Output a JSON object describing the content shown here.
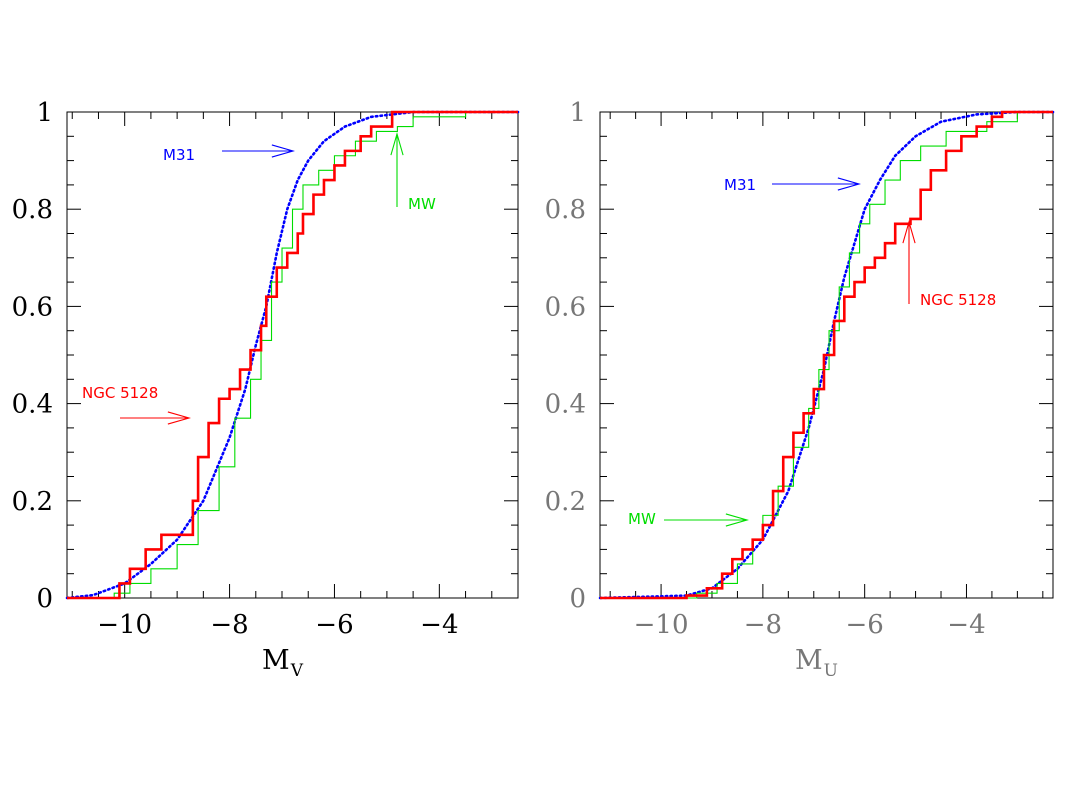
{
  "chart_data": [
    {
      "type": "line",
      "panel": "left",
      "xlabel": "M",
      "xlabel_sub": "V",
      "ylabel": "",
      "xlim": [
        -11.1,
        -2.5
      ],
      "ylim": [
        0,
        1
      ],
      "x_ticks": [
        -10,
        -8,
        -6,
        -4
      ],
      "x_tick_labels": [
        "−10",
        "−8",
        "−6",
        "−4"
      ],
      "y_ticks": [
        0,
        0.2,
        0.4,
        0.6,
        0.8,
        1
      ],
      "y_tick_labels": [
        "0",
        "0.2",
        "0.4",
        "0.6",
        "0.8",
        "1"
      ],
      "grid": false,
      "colors": {
        "NGC 5128": "#ff0000",
        "M31": "#0000ff",
        "MW": "#00dd00"
      },
      "series": [
        {
          "name": "M31",
          "style": "dotted",
          "points": [
            [
              -11.1,
              0.0
            ],
            [
              -10.6,
              0.006
            ],
            [
              -10.0,
              0.03
            ],
            [
              -9.5,
              0.07
            ],
            [
              -9.0,
              0.12
            ],
            [
              -8.5,
              0.2
            ],
            [
              -8.0,
              0.33
            ],
            [
              -7.7,
              0.43
            ],
            [
              -7.5,
              0.52
            ],
            [
              -7.3,
              0.6
            ],
            [
              -7.1,
              0.71
            ],
            [
              -6.9,
              0.8
            ],
            [
              -6.7,
              0.86
            ],
            [
              -6.5,
              0.9
            ],
            [
              -6.2,
              0.94
            ],
            [
              -5.8,
              0.97
            ],
            [
              -5.3,
              0.99
            ],
            [
              -4.5,
              1.0
            ],
            [
              -2.5,
              1.0
            ]
          ]
        },
        {
          "name": "MW",
          "style": "step",
          "points": [
            [
              -11.1,
              0.0
            ],
            [
              -10.2,
              0.01
            ],
            [
              -9.9,
              0.03
            ],
            [
              -9.5,
              0.06
            ],
            [
              -9.0,
              0.11
            ],
            [
              -8.6,
              0.18
            ],
            [
              -8.2,
              0.27
            ],
            [
              -7.9,
              0.37
            ],
            [
              -7.6,
              0.45
            ],
            [
              -7.4,
              0.53
            ],
            [
              -7.2,
              0.65
            ],
            [
              -7.0,
              0.72
            ],
            [
              -6.8,
              0.8
            ],
            [
              -6.6,
              0.85
            ],
            [
              -6.3,
              0.88
            ],
            [
              -6.0,
              0.91
            ],
            [
              -5.6,
              0.94
            ],
            [
              -5.2,
              0.96
            ],
            [
              -4.8,
              0.97
            ],
            [
              -4.5,
              0.99
            ],
            [
              -3.5,
              1.0
            ],
            [
              -2.5,
              1.0
            ]
          ]
        },
        {
          "name": "NGC 5128",
          "style": "step",
          "points": [
            [
              -11.1,
              0.0
            ],
            [
              -10.1,
              0.03
            ],
            [
              -9.9,
              0.06
            ],
            [
              -9.6,
              0.1
            ],
            [
              -9.3,
              0.13
            ],
            [
              -8.9,
              0.13
            ],
            [
              -8.7,
              0.2
            ],
            [
              -8.6,
              0.29
            ],
            [
              -8.4,
              0.36
            ],
            [
              -8.2,
              0.41
            ],
            [
              -8.0,
              0.43
            ],
            [
              -7.8,
              0.47
            ],
            [
              -7.6,
              0.51
            ],
            [
              -7.4,
              0.56
            ],
            [
              -7.3,
              0.62
            ],
            [
              -7.1,
              0.68
            ],
            [
              -6.9,
              0.71
            ],
            [
              -6.7,
              0.75
            ],
            [
              -6.6,
              0.79
            ],
            [
              -6.4,
              0.83
            ],
            [
              -6.2,
              0.86
            ],
            [
              -6.0,
              0.89
            ],
            [
              -5.8,
              0.92
            ],
            [
              -5.5,
              0.95
            ],
            [
              -5.3,
              0.97
            ],
            [
              -5.0,
              0.97
            ],
            [
              -4.9,
              1.0
            ],
            [
              -2.5,
              1.0
            ]
          ]
        }
      ],
      "annotations": [
        {
          "text": "M31",
          "color": "#0000ff"
        },
        {
          "text": "MW",
          "color": "#00dd00"
        },
        {
          "text": "NGC 5128",
          "color": "#ff0000"
        }
      ]
    },
    {
      "type": "line",
      "panel": "right",
      "xlabel": "M",
      "xlabel_sub": "U",
      "ylabel": "",
      "xlim": [
        -11.2,
        -2.3
      ],
      "ylim": [
        0,
        1
      ],
      "x_ticks": [
        -10,
        -8,
        -6,
        -4
      ],
      "x_tick_labels": [
        "−10",
        "−8",
        "−6",
        "−4"
      ],
      "y_ticks": [
        0,
        0.2,
        0.4,
        0.6,
        0.8,
        1
      ],
      "y_tick_labels": [
        "0",
        "0.2",
        "0.4",
        "0.6",
        "0.8",
        "1"
      ],
      "grid": false,
      "colors": {
        "NGC 5128": "#ff0000",
        "M31": "#0000ff",
        "MW": "#00dd00"
      },
      "series": [
        {
          "name": "M31",
          "style": "dotted",
          "points": [
            [
              -11.2,
              0.0
            ],
            [
              -9.5,
              0.005
            ],
            [
              -9.0,
              0.02
            ],
            [
              -8.5,
              0.06
            ],
            [
              -8.0,
              0.12
            ],
            [
              -7.5,
              0.22
            ],
            [
              -7.1,
              0.35
            ],
            [
              -6.8,
              0.47
            ],
            [
              -6.6,
              0.57
            ],
            [
              -6.4,
              0.66
            ],
            [
              -6.2,
              0.73
            ],
            [
              -6.0,
              0.8
            ],
            [
              -5.7,
              0.86
            ],
            [
              -5.4,
              0.91
            ],
            [
              -5.0,
              0.95
            ],
            [
              -4.5,
              0.98
            ],
            [
              -3.8,
              0.995
            ],
            [
              -3.0,
              1.0
            ],
            [
              -2.3,
              1.0
            ]
          ]
        },
        {
          "name": "MW",
          "style": "step",
          "points": [
            [
              -11.2,
              0.0
            ],
            [
              -9.3,
              0.01
            ],
            [
              -8.9,
              0.03
            ],
            [
              -8.5,
              0.07
            ],
            [
              -8.2,
              0.12
            ],
            [
              -8.0,
              0.17
            ],
            [
              -7.7,
              0.23
            ],
            [
              -7.4,
              0.31
            ],
            [
              -7.1,
              0.39
            ],
            [
              -6.9,
              0.47
            ],
            [
              -6.7,
              0.55
            ],
            [
              -6.5,
              0.64
            ],
            [
              -6.3,
              0.71
            ],
            [
              -6.1,
              0.77
            ],
            [
              -5.9,
              0.81
            ],
            [
              -5.6,
              0.86
            ],
            [
              -5.3,
              0.9
            ],
            [
              -4.9,
              0.93
            ],
            [
              -4.4,
              0.96
            ],
            [
              -3.6,
              0.98
            ],
            [
              -3.0,
              1.0
            ],
            [
              -2.3,
              1.0
            ]
          ]
        },
        {
          "name": "NGC 5128",
          "style": "step",
          "points": [
            [
              -11.2,
              0.0
            ],
            [
              -9.5,
              0.005
            ],
            [
              -9.1,
              0.02
            ],
            [
              -8.8,
              0.05
            ],
            [
              -8.6,
              0.08
            ],
            [
              -8.4,
              0.1
            ],
            [
              -8.2,
              0.12
            ],
            [
              -8.0,
              0.15
            ],
            [
              -7.8,
              0.22
            ],
            [
              -7.6,
              0.29
            ],
            [
              -7.4,
              0.34
            ],
            [
              -7.2,
              0.38
            ],
            [
              -7.0,
              0.43
            ],
            [
              -6.8,
              0.5
            ],
            [
              -6.6,
              0.57
            ],
            [
              -6.4,
              0.62
            ],
            [
              -6.2,
              0.65
            ],
            [
              -6.0,
              0.68
            ],
            [
              -5.8,
              0.7
            ],
            [
              -5.6,
              0.73
            ],
            [
              -5.4,
              0.77
            ],
            [
              -5.1,
              0.78
            ],
            [
              -4.9,
              0.84
            ],
            [
              -4.7,
              0.88
            ],
            [
              -4.4,
              0.92
            ],
            [
              -4.1,
              0.95
            ],
            [
              -3.8,
              0.97
            ],
            [
              -3.5,
              0.99
            ],
            [
              -3.3,
              1.0
            ],
            [
              -2.3,
              1.0
            ]
          ]
        }
      ],
      "annotations": [
        {
          "text": "M31",
          "color": "#0000ff"
        },
        {
          "text": "MW",
          "color": "#00dd00"
        },
        {
          "text": "NGC 5128",
          "color": "#ff0000"
        }
      ]
    }
  ]
}
